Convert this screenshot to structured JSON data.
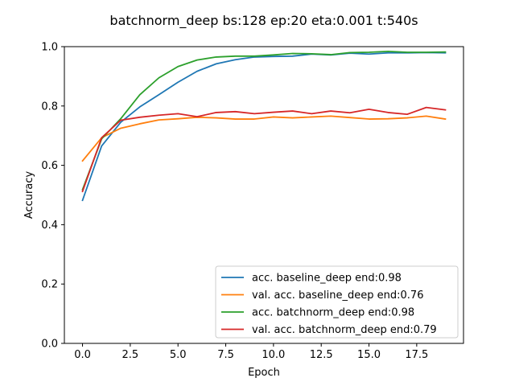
{
  "chart_data": {
    "type": "line",
    "title": "batchnorm_deep bs:128 ep:20 eta:0.001 t:540s",
    "xlabel": "Epoch",
    "ylabel": "Accuracy",
    "xlim": [
      -0.95,
      19.95
    ],
    "ylim": [
      0.0,
      1.0
    ],
    "xticks": [
      0.0,
      2.5,
      5.0,
      7.5,
      10.0,
      12.5,
      15.0,
      17.5
    ],
    "xtick_labels": [
      "0.0",
      "2.5",
      "5.0",
      "7.5",
      "10.0",
      "12.5",
      "15.0",
      "17.5"
    ],
    "yticks": [
      0.0,
      0.2,
      0.4,
      0.6,
      0.8,
      1.0
    ],
    "ytick_labels": [
      "0.0",
      "0.2",
      "0.4",
      "0.6",
      "0.8",
      "1.0"
    ],
    "grid": false,
    "legend_position": "lower right",
    "x": [
      0,
      1,
      2,
      3,
      4,
      5,
      6,
      7,
      8,
      9,
      10,
      11,
      12,
      13,
      14,
      15,
      16,
      17,
      18,
      19
    ],
    "series": [
      {
        "name": "acc. baseline_deep  end:0.98",
        "color": "#1f77b4",
        "values": [
          0.482,
          0.665,
          0.745,
          0.797,
          0.838,
          0.88,
          0.917,
          0.942,
          0.956,
          0.965,
          0.967,
          0.968,
          0.975,
          0.972,
          0.978,
          0.975,
          0.979,
          0.979,
          0.98,
          0.979
        ]
      },
      {
        "name": "val. acc. baseline_deep  end:0.76",
        "color": "#ff7f0e",
        "values": [
          0.615,
          0.693,
          0.725,
          0.74,
          0.753,
          0.757,
          0.762,
          0.76,
          0.756,
          0.756,
          0.763,
          0.76,
          0.763,
          0.766,
          0.761,
          0.756,
          0.757,
          0.76,
          0.766,
          0.756
        ]
      },
      {
        "name": "acc. batchnorm_deep  end:0.98",
        "color": "#2ca02c",
        "values": [
          0.518,
          0.689,
          0.757,
          0.838,
          0.895,
          0.933,
          0.955,
          0.965,
          0.968,
          0.968,
          0.972,
          0.977,
          0.976,
          0.973,
          0.98,
          0.981,
          0.984,
          0.981,
          0.981,
          0.982
        ]
      },
      {
        "name": "val. acc. batchnorm_deep  end:0.79",
        "color": "#d62728",
        "values": [
          0.512,
          0.693,
          0.752,
          0.762,
          0.769,
          0.774,
          0.764,
          0.778,
          0.781,
          0.774,
          0.779,
          0.783,
          0.774,
          0.783,
          0.777,
          0.789,
          0.778,
          0.772,
          0.795,
          0.787
        ]
      }
    ]
  }
}
